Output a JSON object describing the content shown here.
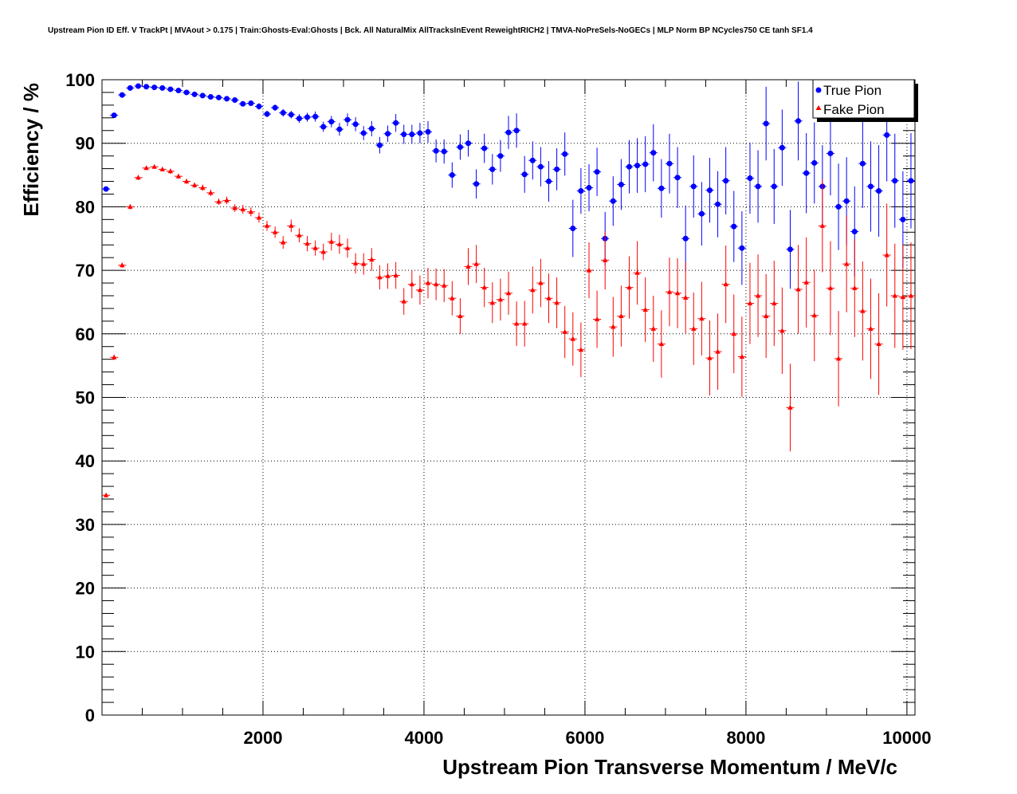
{
  "chart_data": {
    "type": "scatter",
    "title": "Upstream Pion ID Eff. V TrackPt | MVAout > 0.175 | Train:Ghosts-Eval:Ghosts | Bck. All NaturalMix AllTracksInEvent ReweightRICH2 | TMVA-NoPreSels-NoGECs | MLP Norm BP NCycles750 CE tanh SF1.4",
    "xlabel": "Upstream Pion Transverse Momentum / MeV/c",
    "ylabel": "Efficiency / %",
    "xlim": [
      0,
      10100
    ],
    "ylim": [
      0,
      100
    ],
    "xticks": [
      2000,
      4000,
      6000,
      8000,
      10000
    ],
    "yticks": [
      0,
      10,
      20,
      30,
      40,
      50,
      60,
      70,
      80,
      90,
      100
    ],
    "grid": true,
    "legend_position": "top-right",
    "series": [
      {
        "name": "True Pion",
        "color": "#0000ff",
        "marker": "circle",
        "x": [
          50,
          150,
          250,
          350,
          450,
          550,
          650,
          750,
          850,
          950,
          1050,
          1150,
          1250,
          1350,
          1450,
          1550,
          1650,
          1750,
          1850,
          1950,
          2050,
          2150,
          2250,
          2350,
          2450,
          2550,
          2650,
          2750,
          2850,
          2950,
          3050,
          3150,
          3250,
          3350,
          3450,
          3550,
          3650,
          3750,
          3850,
          3950,
          4050,
          4150,
          4250,
          4350,
          4450,
          4550,
          4650,
          4750,
          4850,
          4950,
          5050,
          5150,
          5250,
          5350,
          5450,
          5550,
          5650,
          5750,
          5850,
          5950,
          6050,
          6150,
          6250,
          6350,
          6450,
          6550,
          6650,
          6750,
          6850,
          6950,
          7050,
          7150,
          7250,
          7350,
          7450,
          7550,
          7650,
          7750,
          7850,
          7950,
          8050,
          8150,
          8250,
          8350,
          8450,
          8550,
          8650,
          8750,
          8850,
          8950,
          9050,
          9150,
          9250,
          9350,
          9450,
          9550,
          9650,
          9750,
          9850,
          9950,
          10050
        ],
        "y": [
          82.8,
          94.4,
          97.6,
          98.7,
          99.0,
          98.9,
          98.8,
          98.7,
          98.5,
          98.3,
          98.0,
          97.7,
          97.5,
          97.3,
          97.2,
          97.0,
          96.8,
          96.2,
          96.3,
          95.8,
          94.6,
          95.6,
          94.8,
          94.5,
          93.9,
          94.1,
          94.2,
          92.6,
          93.4,
          92.2,
          93.7,
          93.0,
          91.6,
          92.3,
          89.7,
          91.5,
          93.2,
          91.4,
          91.4,
          91.6,
          91.8,
          88.8,
          88.7,
          85.0,
          89.4,
          90.0,
          83.6,
          89.2,
          85.9,
          88.0,
          91.7,
          92.0,
          85.1,
          87.3,
          86.3,
          84.0,
          85.9,
          88.3,
          76.6,
          82.5,
          83.0,
          85.5,
          75.0,
          80.9,
          83.5,
          86.3,
          86.5,
          86.7,
          88.5,
          82.9,
          86.8,
          84.6,
          75.0,
          83.2,
          78.9,
          82.6,
          80.4,
          84.1,
          76.9,
          73.5,
          84.5,
          83.2,
          93.1,
          83.2,
          89.3,
          73.3,
          93.5,
          85.3,
          86.9,
          83.2,
          88.4,
          80.0,
          80.9,
          76.1,
          86.8,
          83.2,
          82.5,
          91.3,
          84.1,
          78.0,
          84.1
        ],
        "err": [
          0.3,
          0.3,
          0.3,
          0.2,
          0.2,
          0.2,
          0.2,
          0.2,
          0.2,
          0.2,
          0.3,
          0.3,
          0.3,
          0.3,
          0.3,
          0.3,
          0.4,
          0.4,
          0.4,
          0.5,
          0.5,
          0.5,
          0.6,
          0.6,
          0.7,
          0.7,
          0.8,
          0.8,
          0.9,
          1.0,
          1.0,
          1.1,
          1.1,
          1.2,
          1.3,
          1.3,
          1.4,
          1.5,
          1.5,
          1.6,
          1.7,
          1.8,
          1.9,
          2.0,
          2.0,
          2.1,
          2.3,
          2.3,
          2.4,
          2.5,
          2.6,
          2.7,
          2.9,
          3.0,
          3.1,
          3.2,
          3.3,
          3.4,
          4.5,
          3.6,
          3.7,
          3.8,
          4.2,
          3.9,
          4.0,
          4.2,
          4.3,
          4.4,
          4.5,
          4.6,
          4.7,
          4.8,
          5.2,
          4.9,
          5.0,
          5.1,
          5.2,
          5.3,
          5.6,
          5.8,
          5.6,
          5.7,
          5.8,
          5.9,
          6.0,
          6.2,
          6.2,
          6.3,
          6.4,
          6.5,
          6.6,
          6.8,
          6.9,
          7.1,
          7.0,
          7.1,
          7.2,
          7.3,
          7.4,
          7.6,
          7.5
        ]
      },
      {
        "name": "Fake Pion",
        "color": "#ff0000",
        "marker": "triangle",
        "x": [
          50,
          150,
          250,
          350,
          450,
          550,
          650,
          750,
          850,
          950,
          1050,
          1150,
          1250,
          1350,
          1450,
          1550,
          1650,
          1750,
          1850,
          1950,
          2050,
          2150,
          2250,
          2350,
          2450,
          2550,
          2650,
          2750,
          2850,
          2950,
          3050,
          3150,
          3250,
          3350,
          3450,
          3550,
          3650,
          3750,
          3850,
          3950,
          4050,
          4150,
          4250,
          4350,
          4450,
          4550,
          4650,
          4750,
          4850,
          4950,
          5050,
          5150,
          5250,
          5350,
          5450,
          5550,
          5650,
          5750,
          5850,
          5950,
          6050,
          6150,
          6250,
          6350,
          6450,
          6550,
          6650,
          6750,
          6850,
          6950,
          7050,
          7150,
          7250,
          7350,
          7450,
          7550,
          7650,
          7750,
          7850,
          7950,
          8050,
          8150,
          8250,
          8350,
          8450,
          8550,
          8650,
          8750,
          8850,
          8950,
          9050,
          9150,
          9250,
          9350,
          9450,
          9550,
          9650,
          9750,
          9850,
          9950,
          10050
        ],
        "y": [
          34.6,
          56.3,
          70.8,
          80.0,
          84.6,
          86.1,
          86.3,
          85.9,
          85.6,
          84.8,
          84.0,
          83.4,
          83.0,
          82.2,
          80.8,
          81.0,
          79.8,
          79.6,
          79.2,
          78.3,
          77.0,
          76.0,
          74.4,
          77.0,
          75.5,
          74.2,
          73.5,
          72.9,
          74.5,
          74.1,
          73.5,
          71.1,
          71.0,
          71.7,
          68.9,
          69.1,
          69.2,
          65.1,
          67.8,
          66.9,
          68.0,
          67.8,
          67.6,
          65.6,
          62.8,
          70.6,
          71.0,
          67.3,
          64.9,
          65.4,
          66.4,
          61.6,
          61.6,
          66.9,
          68.0,
          65.6,
          64.9,
          60.3,
          59.2,
          57.5,
          70.0,
          62.3,
          71.6,
          61.1,
          62.8,
          67.3,
          69.6,
          63.8,
          60.8,
          58.4,
          66.6,
          66.4,
          65.7,
          60.8,
          62.4,
          56.2,
          57.2,
          67.8,
          60.0,
          56.4,
          64.8,
          66.0,
          62.8,
          64.8,
          60.5,
          48.4,
          67.0,
          68.1,
          62.9,
          77.0,
          67.2,
          56.1,
          71.0,
          67.2,
          63.6,
          60.8,
          58.4,
          72.4,
          66.0,
          65.8,
          66.0
        ],
        "err": [
          0.3,
          0.4,
          0.4,
          0.4,
          0.4,
          0.3,
          0.3,
          0.3,
          0.4,
          0.4,
          0.4,
          0.4,
          0.5,
          0.5,
          0.5,
          0.6,
          0.6,
          0.7,
          0.7,
          0.8,
          0.8,
          0.9,
          1.0,
          1.0,
          1.1,
          1.2,
          1.2,
          1.3,
          1.4,
          1.5,
          1.5,
          1.6,
          1.7,
          1.8,
          1.9,
          2.0,
          2.1,
          2.1,
          2.2,
          2.3,
          2.4,
          2.5,
          2.6,
          2.7,
          2.8,
          2.9,
          3.0,
          3.1,
          3.2,
          3.3,
          3.4,
          3.5,
          3.6,
          3.7,
          3.8,
          3.9,
          4.0,
          4.1,
          4.2,
          4.3,
          4.4,
          4.5,
          4.6,
          4.7,
          4.8,
          4.9,
          5.0,
          5.1,
          5.2,
          5.3,
          5.4,
          5.5,
          5.6,
          5.7,
          5.8,
          5.9,
          6.0,
          6.1,
          6.2,
          6.3,
          6.4,
          6.5,
          6.6,
          6.7,
          6.8,
          6.9,
          7.0,
          7.1,
          7.2,
          7.3,
          7.4,
          7.5,
          7.6,
          7.7,
          7.8,
          7.9,
          8.0,
          8.1,
          8.2,
          8.3,
          8.4
        ]
      }
    ]
  }
}
